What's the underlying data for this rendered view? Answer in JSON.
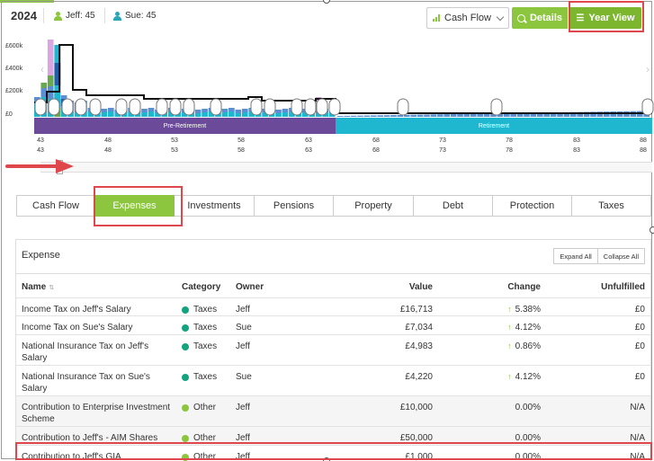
{
  "header": {
    "year": "2024",
    "people": [
      {
        "name_age": "Jeff: 45",
        "color": "#8cc63f"
      },
      {
        "name_age": "Sue: 45",
        "color": "#2aa6b8"
      }
    ],
    "view_select": "Cash Flow",
    "details_label": "Details",
    "year_view_label": "Year View"
  },
  "chart": {
    "y_ticks": [
      "£600k",
      "£400k",
      "£200k",
      "£0"
    ],
    "phases": {
      "pre": "Pre-Retirement",
      "ret": "Retirement"
    },
    "age_ticks_row1": [
      "43",
      "48",
      "53",
      "58",
      "63",
      "68",
      "73",
      "78",
      "83",
      "88"
    ],
    "age_ticks_row2": [
      "43",
      "48",
      "53",
      "58",
      "63",
      "68",
      "73",
      "78",
      "83",
      "88"
    ],
    "colors": {
      "green": "#6aa84f",
      "dark_blue": "#1f5fa8",
      "teal": "#1fb7cf",
      "pink": "#d9a6df",
      "blue": "#5b8fd1"
    }
  },
  "tabs": [
    {
      "label": "Cash Flow",
      "active": false
    },
    {
      "label": "Expenses",
      "active": true
    },
    {
      "label": "Investments",
      "active": false
    },
    {
      "label": "Pensions",
      "active": false
    },
    {
      "label": "Property",
      "active": false
    },
    {
      "label": "Debt",
      "active": false
    },
    {
      "label": "Protection",
      "active": false
    },
    {
      "label": "Taxes",
      "active": false
    }
  ],
  "expense": {
    "title": "Expense",
    "expand_all": "Expand All",
    "collapse_all": "Collapse All",
    "columns": {
      "name": "Name",
      "category": "Category",
      "owner": "Owner",
      "value": "Value",
      "change": "Change",
      "unfulfilled": "Unfulfilled"
    },
    "rows": [
      {
        "name": "Income Tax on Jeff's Salary",
        "category": "Taxes",
        "cat_color": "#14a37f",
        "owner": "Jeff",
        "value": "£16,713",
        "change": "5.38%",
        "up": true,
        "unfulfilled": "£0"
      },
      {
        "name": "Income Tax on Sue's Salary",
        "category": "Taxes",
        "cat_color": "#14a37f",
        "owner": "Sue",
        "value": "£7,034",
        "change": "4.12%",
        "up": true,
        "unfulfilled": "£0"
      },
      {
        "name": "National Insurance Tax on Jeff's Salary",
        "category": "Taxes",
        "cat_color": "#14a37f",
        "owner": "Jeff",
        "value": "£4,983",
        "change": "0.86%",
        "up": true,
        "unfulfilled": "£0"
      },
      {
        "name": "National Insurance Tax on Sue's Salary",
        "category": "Taxes",
        "cat_color": "#14a37f",
        "owner": "Sue",
        "value": "£4,220",
        "change": "4.12%",
        "up": true,
        "unfulfilled": "£0"
      },
      {
        "name": "Contribution to Enterprise Investment Scheme",
        "category": "Other",
        "cat_color": "#8cc63f",
        "owner": "Jeff",
        "value": "£10,000",
        "change": "0.00%",
        "up": false,
        "unfulfilled": "N/A"
      },
      {
        "name": "Contribution to Jeff's - AIM Shares",
        "category": "Other",
        "cat_color": "#8cc63f",
        "owner": "Jeff",
        "value": "£50,000",
        "change": "0.00%",
        "up": false,
        "unfulfilled": "N/A"
      },
      {
        "name": "Contribution to Jeff's GIA",
        "category": "Other",
        "cat_color": "#8cc63f",
        "owner": "Jeff",
        "value": "£1,000",
        "change": "0.00%",
        "up": false,
        "unfulfilled": "N/A"
      }
    ]
  }
}
